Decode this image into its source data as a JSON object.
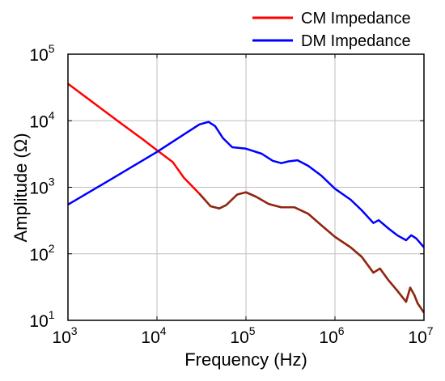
{
  "chart_data": {
    "type": "line",
    "title": "",
    "xlabel": "Frequency (Hz)",
    "ylabel": "Amplitude (Ω)",
    "xscale": "log",
    "yscale": "log",
    "xlim": [
      1000,
      10000000
    ],
    "ylim": [
      10,
      100000
    ],
    "grid": true,
    "legend_position": "top-right, outside",
    "x_ticks": [
      {
        "base": "10",
        "exp": "3",
        "value": 1000
      },
      {
        "base": "10",
        "exp": "4",
        "value": 10000
      },
      {
        "base": "10",
        "exp": "5",
        "value": 100000
      },
      {
        "base": "10",
        "exp": "6",
        "value": 1000000
      },
      {
        "base": "10",
        "exp": "7",
        "value": 10000000
      }
    ],
    "y_ticks": [
      {
        "base": "10",
        "exp": "1",
        "value": 10
      },
      {
        "base": "10",
        "exp": "2",
        "value": 100
      },
      {
        "base": "10",
        "exp": "3",
        "value": 1000
      },
      {
        "base": "10",
        "exp": "4",
        "value": 10000
      },
      {
        "base": "10",
        "exp": "5",
        "value": 100000
      }
    ],
    "series": [
      {
        "name": "CM Impedance",
        "color": "#ff0000",
        "color_overlap": "#8b2a12",
        "points": [
          [
            1000,
            36000
          ],
          [
            2000,
            18000
          ],
          [
            4000,
            9000
          ],
          [
            7000,
            5200
          ],
          [
            10000,
            3600
          ],
          [
            15000,
            2400
          ],
          [
            20000,
            1400
          ],
          [
            30000,
            800
          ],
          [
            40000,
            520
          ],
          [
            50000,
            480
          ],
          [
            60000,
            540
          ],
          [
            80000,
            780
          ],
          [
            100000,
            840
          ],
          [
            130000,
            720
          ],
          [
            180000,
            560
          ],
          [
            250000,
            500
          ],
          [
            350000,
            500
          ],
          [
            500000,
            400
          ],
          [
            700000,
            270
          ],
          [
            1000000,
            180
          ],
          [
            1500000,
            125
          ],
          [
            2000000,
            90
          ],
          [
            2700000,
            52
          ],
          [
            3200000,
            60
          ],
          [
            4000000,
            40
          ],
          [
            5000000,
            28
          ],
          [
            6300000,
            19
          ],
          [
            7000000,
            31
          ],
          [
            7800000,
            24
          ],
          [
            8500000,
            18
          ],
          [
            10000000,
            13
          ]
        ]
      },
      {
        "name": "DM Impedance",
        "color": "#0000ff",
        "points": [
          [
            1000,
            550
          ],
          [
            3000,
            1300
          ],
          [
            10000,
            3400
          ],
          [
            20000,
            6200
          ],
          [
            30000,
            8800
          ],
          [
            38000,
            9600
          ],
          [
            45000,
            8300
          ],
          [
            55000,
            5500
          ],
          [
            70000,
            4000
          ],
          [
            100000,
            3800
          ],
          [
            150000,
            3200
          ],
          [
            200000,
            2500
          ],
          [
            250000,
            2300
          ],
          [
            300000,
            2450
          ],
          [
            380000,
            2550
          ],
          [
            500000,
            2100
          ],
          [
            700000,
            1500
          ],
          [
            1000000,
            950
          ],
          [
            1500000,
            650
          ],
          [
            2000000,
            450
          ],
          [
            2700000,
            290
          ],
          [
            3100000,
            320
          ],
          [
            4000000,
            240
          ],
          [
            5000000,
            190
          ],
          [
            6300000,
            160
          ],
          [
            7200000,
            190
          ],
          [
            8200000,
            170
          ],
          [
            10000000,
            125
          ]
        ]
      }
    ]
  }
}
